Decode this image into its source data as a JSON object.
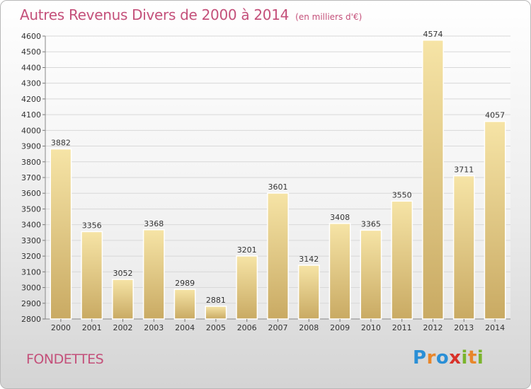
{
  "chart_data": {
    "type": "bar",
    "title": "Autres Revenus Divers de 2000 à 2014",
    "subtitle": "(en milliers d'€)",
    "categories": [
      "2000",
      "2001",
      "2002",
      "2003",
      "2004",
      "2005",
      "2006",
      "2007",
      "2008",
      "2009",
      "2010",
      "2011",
      "2012",
      "2013",
      "2014"
    ],
    "values": [
      3882,
      3356,
      3052,
      3368,
      2989,
      2881,
      3201,
      3601,
      3142,
      3408,
      3365,
      3550,
      4574,
      3711,
      4057
    ],
    "ylim": [
      2800,
      4600
    ],
    "ytick_step": 100,
    "xlabel": "",
    "ylabel": "",
    "grid": true,
    "colors": {
      "bar_light": "#f6e4a6",
      "bar_dark": "#c9aa63",
      "grid": "#d8d8d8",
      "title": "#c4507a"
    }
  },
  "footer": {
    "city": "FONDETTES",
    "logo_letters": [
      {
        "ch": "P",
        "color": "#2a8fd6"
      },
      {
        "ch": "r",
        "color": "#e8862a"
      },
      {
        "ch": "o",
        "color": "#2a8fd6"
      },
      {
        "ch": "x",
        "color": "#d8322a"
      },
      {
        "ch": "i",
        "color": "#7ab42c"
      },
      {
        "ch": "t",
        "color": "#e8862a"
      },
      {
        "ch": "i",
        "color": "#7ab42c"
      }
    ]
  }
}
